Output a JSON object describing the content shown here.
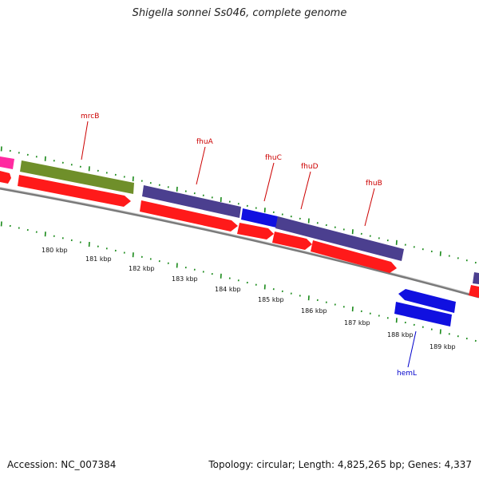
{
  "header": {
    "title": "Shigella sonnei Ss046, complete genome"
  },
  "footer": {
    "accession": "Accession: NC_007384",
    "summary": "Topology: circular; Length: 4,825,265 bp; Genes: 4,337"
  },
  "scale": {
    "labels": [
      "180 kbp",
      "181 kbp",
      "182 kbp",
      "183 kbp",
      "184 kbp",
      "185 kbp",
      "186 kbp",
      "187 kbp",
      "188 kbp",
      "189 kbp"
    ]
  },
  "genes": {
    "mrcB": "mrcB",
    "fhuA": "fhuA",
    "fhuC": "fhuC",
    "fhuD": "fhuD",
    "fhuB": "fhuB",
    "hemL": "hemL"
  },
  "colors": {
    "cds": "#ff1a1a",
    "operon": "#4b3f8f",
    "olive": "#6f8f2a",
    "blue": "#1010e0",
    "magenta": "#ff2aa0",
    "backbone": "#888888",
    "tick": "#1a8a1a",
    "gene_label_red": "#cc0000",
    "gene_label_blue": "#0000cc"
  }
}
